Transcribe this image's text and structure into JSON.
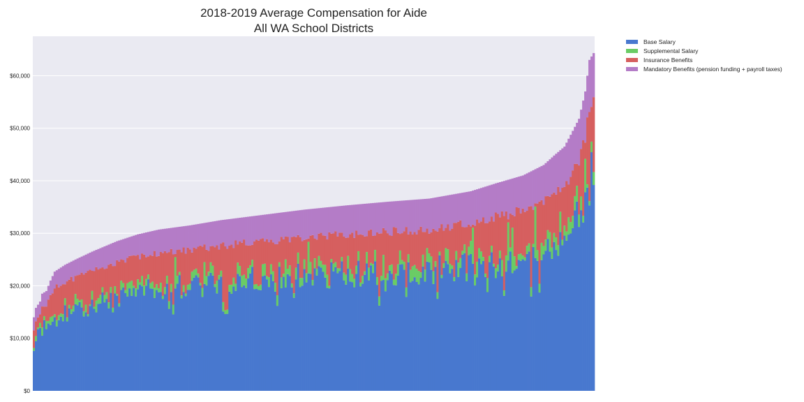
{
  "chart_data": {
    "type": "bar",
    "stacked": true,
    "title": [
      "2018-2019 Average Compensation for Aide",
      "All WA School Districts"
    ],
    "xlabel": "",
    "ylabel": "",
    "ylim": [
      0,
      67500
    ],
    "yticks": [
      0,
      10000,
      20000,
      30000,
      40000,
      50000,
      60000
    ],
    "ytick_labels": [
      "$0",
      "$10,000",
      "$20,000",
      "$30,000",
      "$40,000",
      "$50,000",
      "$60,000"
    ],
    "grid": true,
    "legend_position": "outside-top-right",
    "district_count": 270,
    "series": [
      {
        "name": "Base Salary",
        "color": "#4878cf"
      },
      {
        "name": "Supplemental Salary",
        "color": "#6acc65"
      },
      {
        "name": "Insurance Benefits",
        "color": "#d65f5f"
      },
      {
        "name": "Mandatory Benefits (pension funding + payroll taxes)",
        "color": "#b47cc7"
      }
    ],
    "total_anchors": [
      [
        0,
        14000
      ],
      [
        1,
        15800
      ],
      [
        3,
        17000
      ],
      [
        4,
        18500
      ],
      [
        6,
        19000
      ],
      [
        8,
        21000
      ],
      [
        10,
        22700
      ],
      [
        15,
        24000
      ],
      [
        20,
        25000
      ],
      [
        28,
        26500
      ],
      [
        34,
        27500
      ],
      [
        40,
        28500
      ],
      [
        50,
        29800
      ],
      [
        60,
        30700
      ],
      [
        75,
        31500
      ],
      [
        90,
        32500
      ],
      [
        110,
        33500
      ],
      [
        130,
        34500
      ],
      [
        150,
        35300
      ],
      [
        170,
        36000
      ],
      [
        190,
        36600
      ],
      [
        210,
        38000
      ],
      [
        222,
        39500
      ],
      [
        235,
        41000
      ],
      [
        245,
        43000
      ],
      [
        250,
        44800
      ],
      [
        255,
        46500
      ],
      [
        259,
        49500
      ],
      [
        262,
        51800
      ],
      [
        265,
        57000
      ],
      [
        267,
        63000
      ],
      [
        269,
        64300
      ]
    ],
    "base_anchors": [
      [
        0,
        7500
      ],
      [
        1,
        10500
      ],
      [
        3,
        11500
      ],
      [
        8,
        13000
      ],
      [
        15,
        14800
      ],
      [
        25,
        16000
      ],
      [
        40,
        18000
      ],
      [
        60,
        19500
      ],
      [
        80,
        20300
      ],
      [
        100,
        21000
      ],
      [
        130,
        21800
      ],
      [
        160,
        22500
      ],
      [
        190,
        23000
      ],
      [
        220,
        24000
      ],
      [
        240,
        25500
      ],
      [
        252,
        28000
      ],
      [
        258,
        30000
      ],
      [
        262,
        33000
      ],
      [
        265,
        36000
      ],
      [
        269,
        43000
      ]
    ],
    "supplemental_anchors": [
      [
        0,
        800
      ],
      [
        20,
        900
      ],
      [
        60,
        1100
      ],
      [
        120,
        1300
      ],
      [
        200,
        1500
      ],
      [
        240,
        1800
      ],
      [
        260,
        2200
      ],
      [
        269,
        1500
      ]
    ],
    "mandatory_anchors": [
      [
        0,
        2500
      ],
      [
        20,
        3500
      ],
      [
        60,
        4500
      ],
      [
        120,
        5200
      ],
      [
        200,
        6000
      ],
      [
        240,
        6800
      ],
      [
        262,
        8000
      ],
      [
        269,
        9500
      ]
    ]
  }
}
